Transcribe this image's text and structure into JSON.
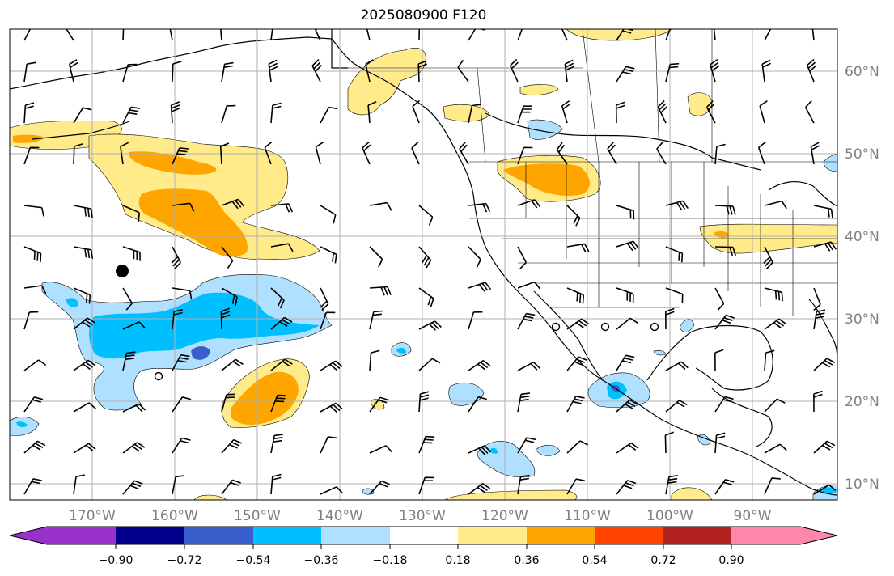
{
  "title": "2025080900 F120",
  "lat_labels": [
    "10°N",
    "20°N",
    "30°N",
    "40°N",
    "50°N",
    "60°N"
  ],
  "lon_labels": [
    "170°W",
    "160°W",
    "150°W",
    "140°W",
    "130°W",
    "120°W",
    "110°W",
    "100°W",
    "90°W"
  ],
  "colorbar": {
    "labels": [
      "−0.90",
      "−0.72",
      "−0.54",
      "−0.36",
      "−0.18",
      "0.18",
      "0.36",
      "0.54",
      "0.72",
      "0.90"
    ],
    "colors": [
      "#9932cc",
      "#00008b",
      "#3a5fcd",
      "#00bfff",
      "#b0e0ff",
      "#ffffff",
      "#ffeb8a",
      "#ffa500",
      "#ff4500",
      "#b22222",
      "#ff88aa"
    ],
    "extend": "both"
  },
  "colors": {
    "pos_light": "#ffeb8a",
    "pos_mid": "#ffa500",
    "neg_light": "#b0e0ff",
    "neg_mid": "#00bfff",
    "neg_strong": "#3a5fcd",
    "grid": "#b0b0b0",
    "coast": "#000000"
  },
  "markers": {
    "storm_center": "filled-circle",
    "open_circles": 4
  }
}
